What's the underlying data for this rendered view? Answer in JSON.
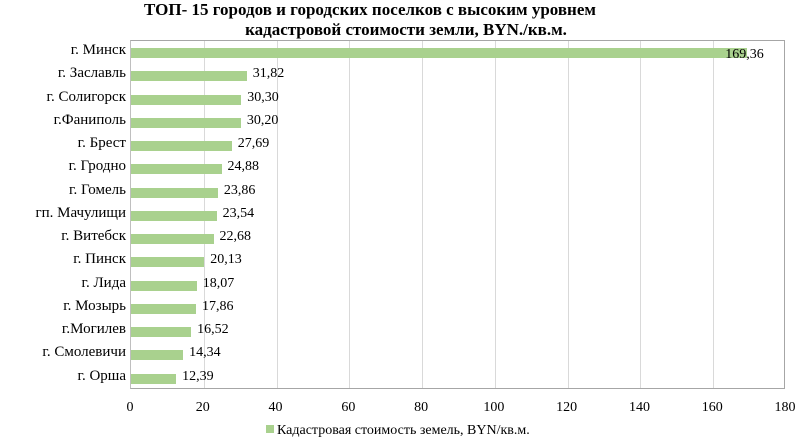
{
  "chart_data": {
    "type": "bar",
    "orientation": "horizontal",
    "title": "ТОП- 15 городов и городских поселков с высоким уровнем кадастровой стоимости земли, BYN./кв.м.",
    "title_lines": [
      "ТОП- 15 городов и городских поселков с высоким уровнем",
      "кадастровой стоимости земли, BYN./кв.м."
    ],
    "xlabel": "",
    "ylabel": "",
    "xlim": [
      0,
      180
    ],
    "x_ticks": [
      "0",
      "20",
      "40",
      "60",
      "80",
      "100",
      "120",
      "140",
      "160",
      "180"
    ],
    "grid": true,
    "legend_position": "bottom",
    "categories": [
      "г. Минск",
      "г. Заславль",
      "г. Солигорск",
      "г.Фаниполь",
      "г. Брест",
      "г. Гродно",
      "г. Гомель",
      "гп. Мачулищи",
      "г. Витебск",
      "г. Пинск",
      "г. Лида",
      "г. Мозырь",
      "г.Могилев",
      "г. Смолевичи",
      "г. Орша"
    ],
    "series": [
      {
        "name": "Кадастровая стоимость земель, BYN/кв.м.",
        "color": "#a9d18e",
        "values": [
          169.36,
          31.82,
          30.3,
          30.2,
          27.69,
          24.88,
          23.86,
          23.54,
          22.68,
          20.13,
          18.07,
          17.86,
          16.52,
          14.34,
          12.39
        ],
        "labels": [
          "169,36",
          "31,82",
          "30,30",
          "30,20",
          "27,69",
          "24,88",
          "23,86",
          "23,54",
          "22,68",
          "20,13",
          "18,07",
          "17,86",
          "16,52",
          "14,34",
          "12,39"
        ]
      }
    ]
  }
}
